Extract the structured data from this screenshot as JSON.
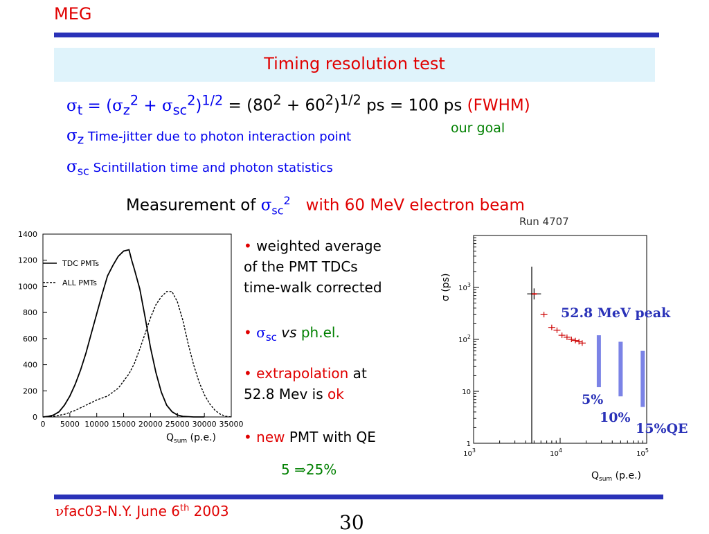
{
  "header": {
    "logo_text": "MEG",
    "title": "Timing resolution test"
  },
  "equation": {
    "lhs_sub": "t",
    "eq": " = (",
    "z_sub": "z",
    "sq": "2",
    "plus": " + ",
    "sc_sub": "sc",
    "close": ")",
    "half": "1/2",
    "rhs_a": " = (80",
    "rhs_b": " + 60",
    "rhs_c": ")",
    "rhs_d": " ps = 100 ps ",
    "fwhm": "(FWHM)",
    "goal": "our goal"
  },
  "definitions": [
    {
      "sub": "z",
      "text": "Time-jitter due to photon interaction point"
    },
    {
      "sub": "sc",
      "text": "Scintillation time and photon statistics"
    }
  ],
  "measurement": {
    "text": "Measurement of ",
    "sub": "sc",
    "sup": "2",
    "beam": "with 60 MeV electron beam"
  },
  "bullets": {
    "b1": [
      "weighted average",
      "of the PMT TDCs",
      "time-walk corrected"
    ],
    "b2": {
      "sub": "sc",
      "vs": " vs ",
      "phel": "ph.el."
    },
    "b3": {
      "extrap": "extrapolation",
      "at": " at",
      "line2": "52.8 Mev is ",
      "ok": "ok"
    },
    "b4": {
      "new": "new",
      "rest": " PMT with QE"
    },
    "qe": {
      "from": "5 ",
      "to": "25%"
    }
  },
  "hist_chart": {
    "type": "line",
    "xlabel": "Q",
    "xlabel_sub": "sum",
    "xlabel_unit": " (p.e.)",
    "xticks": [
      "0",
      "5000",
      "10000",
      "15000",
      "20000",
      "25000",
      "30000",
      "35000"
    ],
    "yticks": [
      "0",
      "200",
      "400",
      "600",
      "800",
      "1000",
      "1200",
      "1400"
    ],
    "xlim": [
      0,
      35000
    ],
    "ylim": [
      0,
      1400
    ],
    "series": [
      {
        "name": "TDC PMTs",
        "style": "solid",
        "x": [
          0,
          1000,
          2000,
          3000,
          4000,
          5000,
          6000,
          7000,
          8000,
          9000,
          10000,
          11000,
          12000,
          13000,
          14000,
          15000,
          16000,
          16500,
          17000,
          18000,
          19000,
          20000,
          21000,
          22000,
          23000,
          24000,
          25000,
          26000,
          28000,
          30000
        ],
        "y": [
          0,
          5,
          15,
          40,
          90,
          160,
          250,
          360,
          490,
          640,
          790,
          940,
          1080,
          1160,
          1230,
          1270,
          1280,
          1200,
          1130,
          980,
          760,
          530,
          340,
          190,
          90,
          40,
          15,
          5,
          0,
          0
        ]
      },
      {
        "name": "ALL PMTs",
        "style": "dashed",
        "x": [
          0,
          2000,
          4000,
          6000,
          8000,
          10000,
          12000,
          14000,
          16000,
          17000,
          18000,
          19000,
          20000,
          21000,
          22000,
          23000,
          24000,
          25000,
          26000,
          27000,
          28000,
          29000,
          30000,
          31000,
          32000,
          33000,
          34000,
          35000
        ],
        "y": [
          0,
          5,
          20,
          50,
          90,
          130,
          160,
          220,
          330,
          410,
          520,
          640,
          760,
          860,
          920,
          960,
          960,
          880,
          740,
          560,
          400,
          270,
          170,
          100,
          50,
          20,
          5,
          0
        ]
      }
    ]
  },
  "run_chart": {
    "type": "scatter",
    "title": "Run 4707",
    "xlabel": "Q",
    "xlabel_sub": "sum",
    "xlabel_unit": " (p.e.)",
    "ylabel": "σ (ps)",
    "x_scale": "log",
    "y_scale": "log",
    "xticks": [
      "10",
      "10",
      "10"
    ],
    "xtick_exps": [
      "3",
      "4",
      "5"
    ],
    "yticks": [
      "10",
      "10",
      "10",
      "1"
    ],
    "ytick_exps": [
      "3",
      "2",
      "",
      ""
    ],
    "xlim": [
      1000,
      100000
    ],
    "ylim": [
      1,
      10000
    ],
    "series": [
      {
        "name": "",
        "x": [
          5000,
          6500,
          8000,
          9200,
          10500,
          12000,
          13500,
          15000,
          16500,
          18000
        ],
        "y": [
          750,
          300,
          170,
          150,
          120,
          110,
          100,
          95,
          90,
          85
        ]
      }
    ],
    "annotations": {
      "peak": "52.8 MeV peak",
      "p5": "5%",
      "p10": "10%",
      "p15": "15%QE"
    },
    "qe_bars": [
      {
        "x": 28000,
        "y_low": 12,
        "y_high": 120
      },
      {
        "x": 50000,
        "y_low": 8,
        "y_high": 90
      },
      {
        "x": 90000,
        "y_low": 5,
        "y_high": 60
      }
    ]
  },
  "footer": {
    "nu": "ν",
    "text": "fac03-N.Y. June 6",
    "th": "th",
    "year": " 2003",
    "page": "30"
  }
}
